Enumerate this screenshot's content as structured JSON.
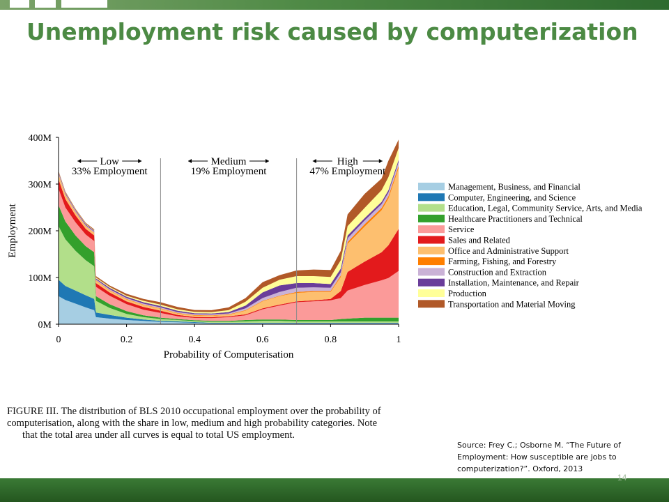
{
  "slide": {
    "title": "Unemployment risk caused by computerization",
    "page_number": "14",
    "source": "Source: Frey C.; Osborne M. “The Future of Employment: How susceptible are jobs to computerization?”. Oxford, 2013",
    "caption_line1": "FIGURE III. The distribution of BLS 2010 occupational employment over the probability of computerisation, along with the share in low, medium and high probability categories. Note",
    "caption_line2": "that the total area under all curves is equal to total US employment.",
    "colors": {
      "title": "#4c8a44",
      "bar_dark": "#2e6b2f",
      "bar_light": "#7ca36a"
    }
  },
  "chart_data": {
    "type": "area",
    "stacked": true,
    "xlabel": "Probability of Computerisation",
    "ylabel": "Employment",
    "xlim": [
      0,
      1
    ],
    "ylim": [
      0,
      400
    ],
    "xticks": [
      "0",
      "0.2",
      "0.4",
      "0.6",
      "0.8",
      "1"
    ],
    "yticks": [
      "0M",
      "100M",
      "200M",
      "300M",
      "400M"
    ],
    "thresholds": [
      0.3,
      0.7
    ],
    "regions": [
      {
        "label": "Low",
        "share": "33% Employment"
      },
      {
        "label": "Medium",
        "share": "19% Employment"
      },
      {
        "label": "High",
        "share": "47% Employment"
      }
    ],
    "legend_position": "right",
    "x": [
      0,
      0.02,
      0.05,
      0.08,
      0.105,
      0.11,
      0.15,
      0.2,
      0.25,
      0.3,
      0.35,
      0.4,
      0.45,
      0.5,
      0.55,
      0.6,
      0.65,
      0.7,
      0.75,
      0.8,
      0.83,
      0.85,
      0.9,
      0.95,
      0.97,
      1
    ],
    "series": [
      {
        "name": "Management, Business, and Financial",
        "color": "#a6cee3",
        "values": [
          60,
          52,
          44,
          36,
          30,
          15,
          12,
          9,
          7,
          5,
          4,
          3,
          2,
          2,
          2,
          2,
          2,
          2,
          2,
          2,
          2,
          2,
          2,
          2,
          2,
          2
        ]
      },
      {
        "name": "Computer, Engineering, and Science",
        "color": "#1f78b4",
        "values": [
          35,
          30,
          28,
          26,
          24,
          10,
          8,
          5,
          3,
          2,
          2,
          1.5,
          1,
          1,
          1,
          1,
          1,
          1,
          1,
          1,
          1,
          1,
          1,
          1,
          1,
          1
        ]
      },
      {
        "name": "Education, Legal, Community Service, Arts, and Media",
        "color": "#b2df8a",
        "values": [
          115,
          100,
          85,
          75,
          70,
          25,
          15,
          8,
          5,
          4,
          3,
          2,
          2,
          2,
          3,
          4,
          4,
          3,
          3,
          3,
          3,
          3,
          3,
          3,
          3,
          3
        ]
      },
      {
        "name": "Healthcare Practitioners and Technical",
        "color": "#33a02c",
        "values": [
          45,
          38,
          33,
          30,
          30,
          10,
          8,
          6,
          4,
          3,
          2,
          2,
          2,
          2,
          3,
          3,
          3,
          3,
          3,
          3,
          5,
          6,
          8,
          8,
          8,
          8
        ]
      },
      {
        "name": "Service",
        "color": "#fb9a99",
        "values": [
          35,
          30,
          28,
          25,
          24,
          20,
          18,
          15,
          12,
          10,
          6,
          5,
          6,
          8,
          10,
          22,
          30,
          38,
          40,
          42,
          45,
          60,
          70,
          80,
          85,
          100
        ]
      },
      {
        "name": "Sales and Related",
        "color": "#e31a1c",
        "values": [
          20,
          18,
          15,
          12,
          12,
          8,
          7,
          6,
          6,
          5,
          3,
          2,
          2,
          2,
          2,
          2,
          2,
          2,
          2,
          3,
          15,
          40,
          50,
          60,
          70,
          90
        ]
      },
      {
        "name": "Office and Administrative Support",
        "color": "#fdbf6f",
        "values": [
          10,
          8,
          6,
          5,
          5,
          5,
          4,
          4,
          4,
          4,
          3,
          3,
          3,
          3,
          8,
          15,
          18,
          18,
          18,
          15,
          30,
          60,
          75,
          90,
          100,
          130
        ]
      },
      {
        "name": "Farming, Fishing, and Forestry",
        "color": "#ff7f00",
        "values": [
          1,
          1,
          1,
          1,
          1,
          1,
          1,
          1,
          1,
          1,
          1,
          1,
          1,
          1,
          1,
          1,
          1,
          2,
          2,
          2,
          3,
          4,
          5,
          5,
          5,
          5
        ]
      },
      {
        "name": "Construction and Extraction",
        "color": "#cab2d6",
        "values": [
          2,
          2,
          2,
          2,
          2,
          2,
          2,
          2,
          2,
          2,
          2,
          2,
          2,
          2,
          4,
          6,
          8,
          9,
          8,
          7,
          7,
          8,
          8,
          8,
          8,
          8
        ]
      },
      {
        "name": "Installation, Maintenance, and Repair",
        "color": "#6a3d9a",
        "values": [
          2,
          2,
          2,
          2,
          2,
          2,
          3,
          3,
          3,
          3,
          3,
          2,
          2,
          3,
          6,
          12,
          14,
          10,
          9,
          8,
          8,
          6,
          5,
          5,
          5,
          5
        ]
      },
      {
        "name": "Production",
        "color": "#ffff99",
        "values": [
          1,
          1,
          1,
          1,
          1,
          2,
          2,
          2,
          3,
          3,
          3,
          3,
          3,
          4,
          8,
          10,
          12,
          15,
          15,
          15,
          18,
          20,
          22,
          25,
          28,
          25
        ]
      },
      {
        "name": "Transportation and Material Moving",
        "color": "#b15928",
        "values": [
          2,
          2,
          2,
          2,
          2,
          3,
          3,
          4,
          4,
          5,
          5,
          4,
          4,
          6,
          8,
          12,
          10,
          12,
          14,
          15,
          20,
          25,
          30,
          25,
          35,
          18
        ]
      }
    ]
  }
}
